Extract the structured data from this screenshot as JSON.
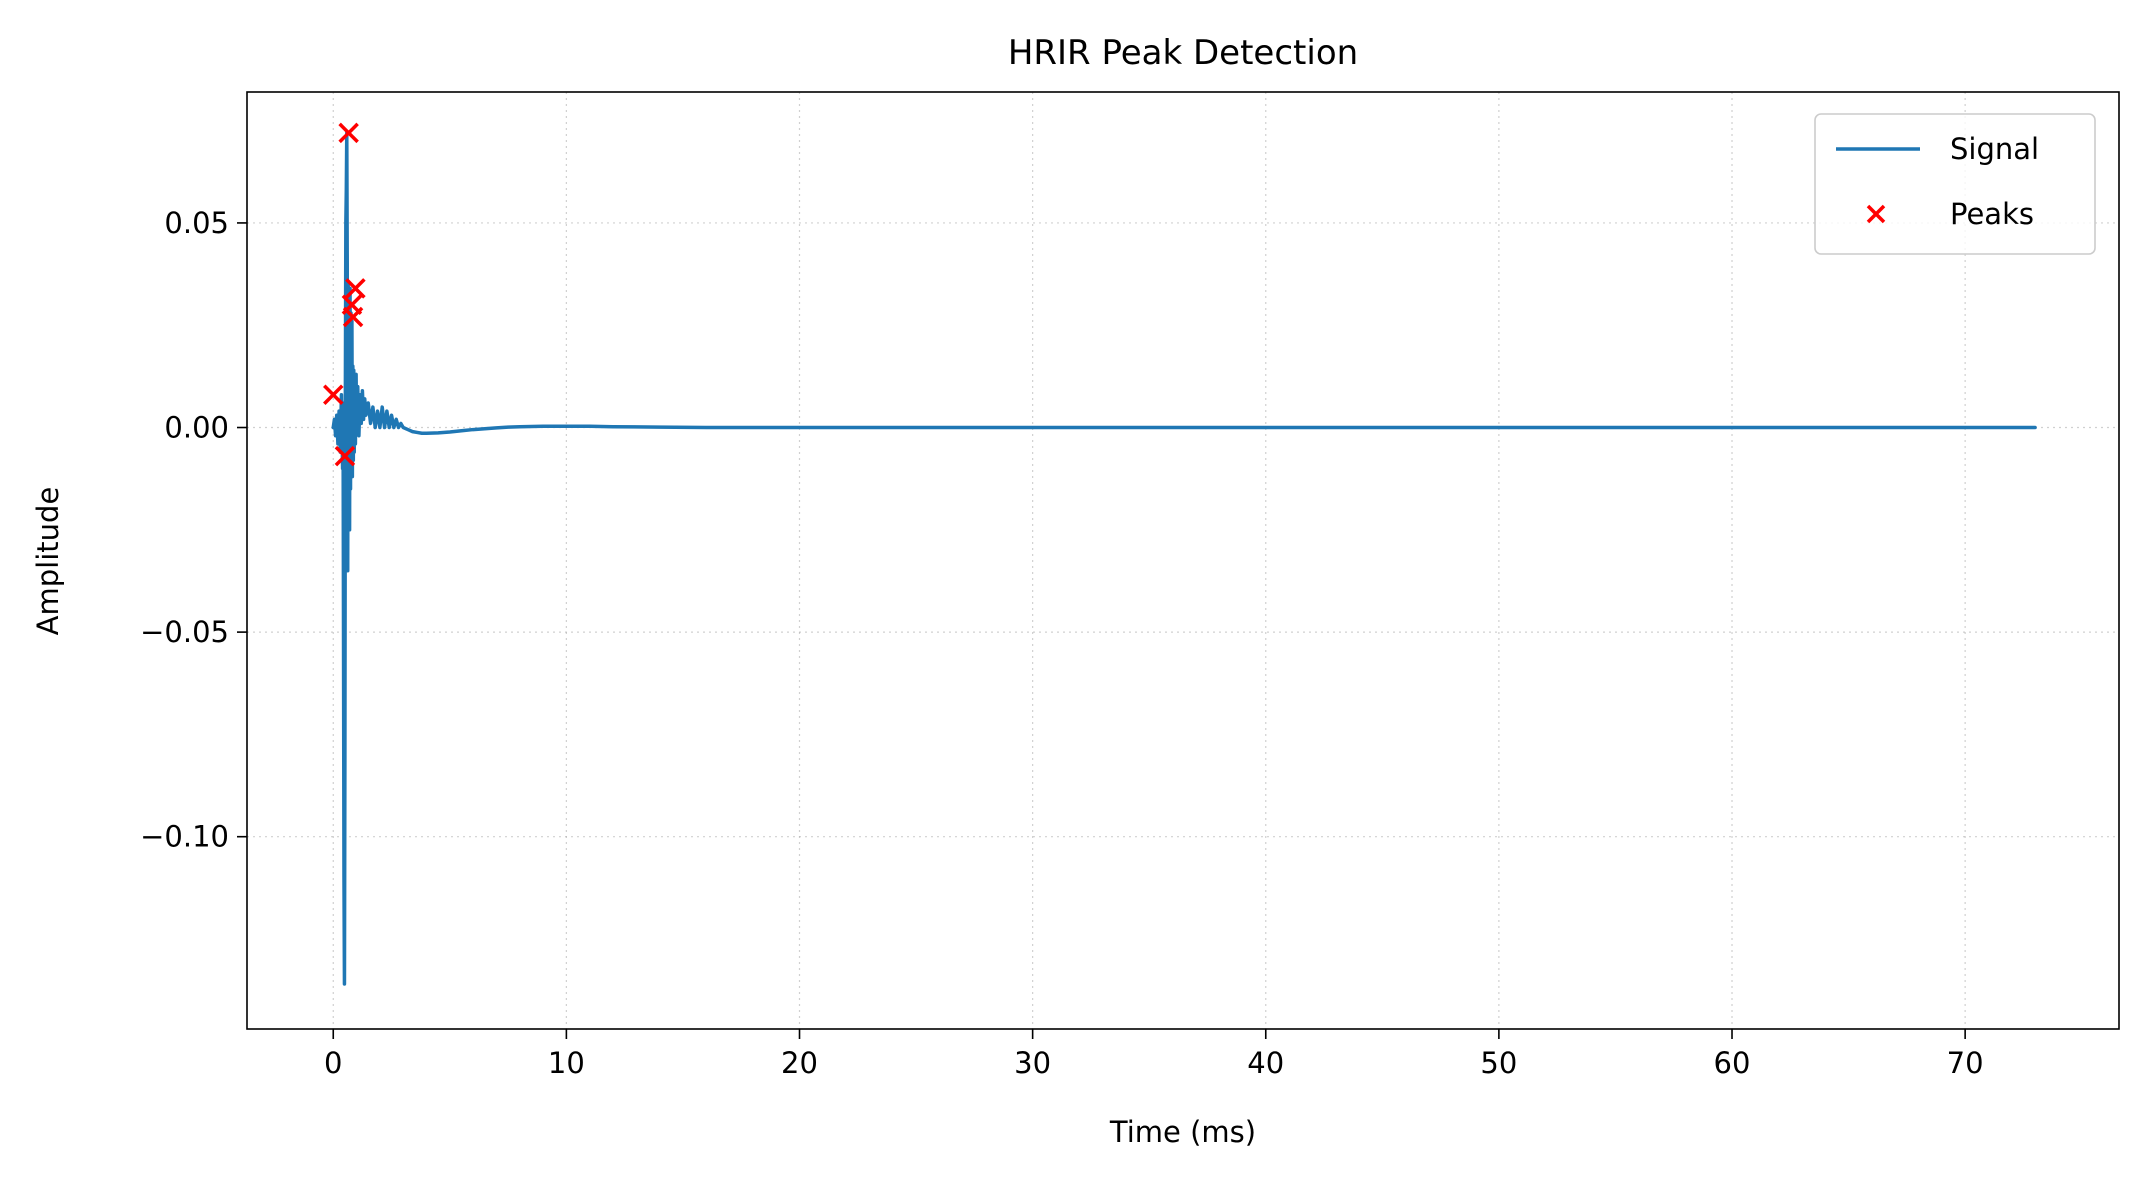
{
  "chart_data": {
    "type": "line",
    "title": "HRIR Peak Detection",
    "xlabel": "Time (ms)",
    "ylabel": "Amplitude",
    "xlim": [
      -3.7,
      76.6
    ],
    "ylim": [
      -0.147,
      0.082
    ],
    "xticks": [
      0,
      10,
      20,
      30,
      40,
      50,
      60,
      70
    ],
    "xtick_labels": [
      "0",
      "10",
      "20",
      "30",
      "40",
      "50",
      "60",
      "70"
    ],
    "yticks": [
      -0.1,
      -0.05,
      0.0,
      0.05
    ],
    "ytick_labels": [
      "−0.10",
      "−0.05",
      "0.00",
      "0.05"
    ],
    "grid": true,
    "legend_position": "top-right",
    "series": [
      {
        "name": "Signal",
        "type": "line",
        "color": "#1f77b4",
        "x": [
          0.0,
          0.05,
          0.1,
          0.15,
          0.2,
          0.25,
          0.3,
          0.35,
          0.4,
          0.42,
          0.44,
          0.46,
          0.48,
          0.5,
          0.52,
          0.54,
          0.56,
          0.58,
          0.6,
          0.62,
          0.64,
          0.66,
          0.68,
          0.7,
          0.72,
          0.74,
          0.76,
          0.78,
          0.8,
          0.82,
          0.84,
          0.86,
          0.88,
          0.9,
          0.92,
          0.95,
          0.98,
          1.0,
          1.05,
          1.1,
          1.15,
          1.2,
          1.25,
          1.3,
          1.35,
          1.4,
          1.5,
          1.6,
          1.7,
          1.8,
          1.9,
          2.0,
          2.1,
          2.2,
          2.3,
          2.4,
          2.5,
          2.6,
          2.7,
          2.8,
          2.9,
          3.0,
          3.2,
          3.4,
          3.6,
          3.8,
          4.0,
          4.5,
          5.0,
          5.5,
          6.0,
          6.5,
          7.0,
          7.5,
          8.0,
          9.0,
          10.0,
          11.0,
          12.0,
          14.0,
          16.0,
          18.0,
          20.0,
          25.0,
          30.0,
          35.0,
          40.0,
          45.0,
          50.0,
          55.0,
          60.0,
          65.0,
          70.0,
          73.0
        ],
        "y": [
          0.0,
          0.002,
          -0.002,
          0.003,
          -0.004,
          0.004,
          -0.006,
          0.008,
          -0.01,
          0.006,
          -0.05,
          -0.11,
          -0.136,
          -0.08,
          0.01,
          0.05,
          0.058,
          0.072,
          0.04,
          -0.035,
          0.035,
          -0.02,
          0.03,
          -0.025,
          0.034,
          -0.015,
          0.028,
          -0.01,
          0.026,
          -0.012,
          0.015,
          -0.008,
          0.014,
          -0.006,
          0.012,
          -0.004,
          0.013,
          0.0,
          0.01,
          -0.002,
          0.008,
          0.001,
          0.009,
          0.002,
          0.007,
          0.003,
          0.006,
          0.001,
          0.005,
          0.0,
          0.004,
          0.0,
          0.005,
          0.0,
          0.004,
          0.0,
          0.003,
          0.0,
          0.002,
          0.0,
          0.001,
          0.0,
          -0.0005,
          -0.001,
          -0.0012,
          -0.0014,
          -0.0014,
          -0.0013,
          -0.0011,
          -0.0008,
          -0.0005,
          -0.0003,
          -0.0001,
          0.0001,
          0.0002,
          0.0003,
          0.0003,
          0.0003,
          0.0002,
          0.0001,
          0.0,
          0.0,
          0.0,
          0.0,
          0.0,
          0.0,
          0.0,
          0.0,
          0.0,
          0.0,
          0.0,
          0.0,
          0.0,
          0.0
        ]
      },
      {
        "name": "Peaks",
        "type": "scatter",
        "marker": "x",
        "color": "#ff0000",
        "x": [
          0.0,
          0.5,
          0.66,
          0.8,
          0.95,
          0.85
        ],
        "y": [
          0.008,
          -0.007,
          0.072,
          0.03,
          0.034,
          0.027
        ]
      }
    ]
  }
}
